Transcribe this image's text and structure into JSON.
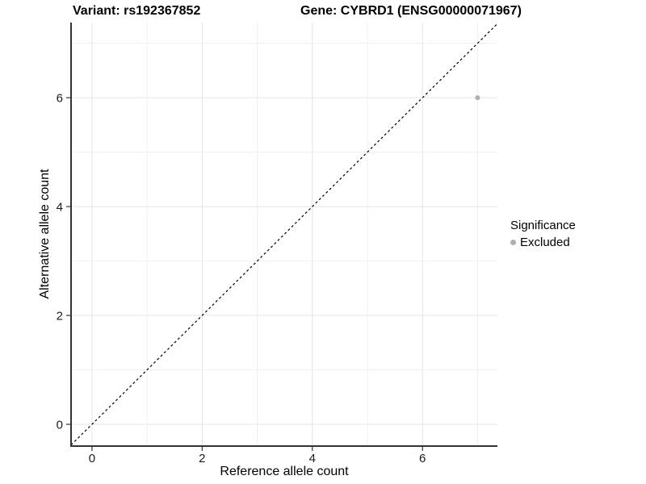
{
  "header": {
    "left_title": "Variant: rs192367852",
    "right_title": "Gene: CYBRD1 (ENSG00000071967)"
  },
  "chart_data": {
    "type": "scatter",
    "xlabel": "Reference allele count",
    "ylabel": "Alternative allele count",
    "xlim": [
      -0.38,
      7.36
    ],
    "ylim": [
      -0.4,
      7.38
    ],
    "x_major_ticks": [
      0,
      2,
      4,
      6
    ],
    "x_tick_labels": [
      "0",
      "2",
      "4",
      "6"
    ],
    "y_major_ticks": [
      0,
      2,
      4,
      6
    ],
    "y_tick_labels": [
      "0",
      "2",
      "4",
      "6"
    ],
    "x_minor_gridlines": [
      1,
      3,
      5,
      7
    ],
    "y_minor_gridlines": [
      1,
      3,
      5,
      7
    ],
    "grid": true,
    "series": [
      {
        "name": "Excluded",
        "points": [
          {
            "x": 7,
            "y": 6
          }
        ]
      }
    ],
    "reference_line": {
      "type": "abline",
      "slope": 1,
      "intercept": 0,
      "style": "dashed",
      "color": "#000000"
    },
    "legend": {
      "title": "Significance",
      "position": "right",
      "entries": [
        {
          "label": "Excluded",
          "color": "#b0b0b0"
        }
      ]
    },
    "colors": {
      "point": "#b0b0b0",
      "grid_major": "#e5e5e5",
      "grid_minor": "#f0f0f0",
      "axis_line": "#333333",
      "tick": "#333333",
      "tick_label": "#1a1a1a"
    }
  }
}
